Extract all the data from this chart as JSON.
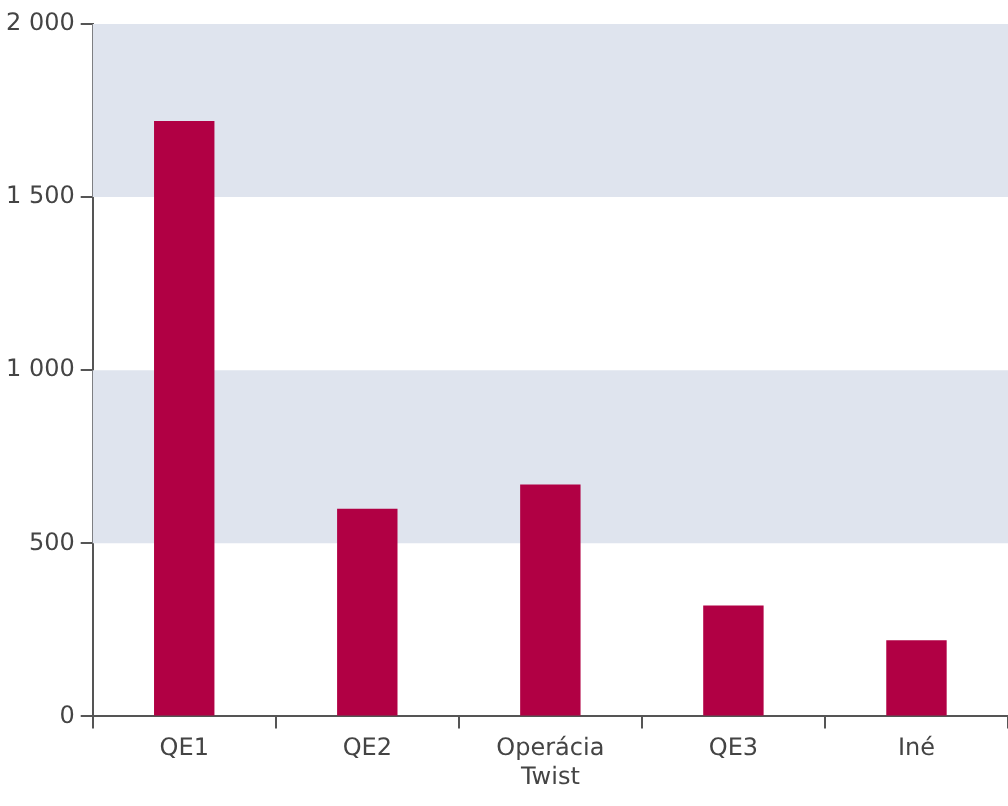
{
  "chart_data": {
    "type": "bar",
    "categories": [
      "QE1",
      "QE2",
      "Operácia Twist",
      "QE3",
      "Iné"
    ],
    "values": [
      1720,
      600,
      670,
      320,
      220
    ],
    "color": "#b10044",
    "ylim": [
      0,
      2000
    ],
    "yticks": [
      0,
      500,
      {
        "value": 1000,
        "label": "1 000"
      },
      {
        "value": 1500,
        "label": "1 500"
      },
      {
        "value": 2000,
        "label": "2 000"
      }
    ],
    "bands": [
      {
        "axis": "y",
        "from": 500,
        "to": 1000,
        "color": "#dfe4ee"
      },
      {
        "axis": "y",
        "from": 1500,
        "to": 2000,
        "color": "#dfe4ee"
      }
    ],
    "grid": false,
    "legend": false
  }
}
